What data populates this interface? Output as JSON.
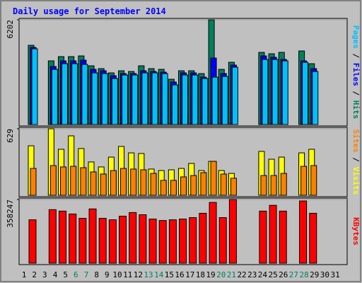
{
  "chart_data": [
    {
      "type": "bar",
      "title": "Daily usage for September 2014",
      "categories": [
        "1",
        "2",
        "3",
        "4",
        "5",
        "6",
        "7",
        "8",
        "9",
        "10",
        "11",
        "12",
        "13",
        "14",
        "15",
        "16",
        "17",
        "18",
        "19",
        "20",
        "21",
        "22",
        "23",
        "24",
        "25",
        "26",
        "27",
        "28",
        "29",
        "30",
        "31"
      ],
      "highlight_categories": [
        "6",
        "7",
        "13",
        "14",
        "20",
        "21",
        "27",
        "28"
      ],
      "highlight_color": "#00805c",
      "legend_separator": " / ",
      "ylim": [
        0,
        6202
      ],
      "yticks": [
        6202
      ],
      "series": [
        {
          "name": "Hits",
          "color": "#00805c",
          "values": [
            4693,
            null,
            3771,
            4022,
            4022,
            4064,
            3478,
            3310,
            3059,
            3184,
            3142,
            3478,
            3310,
            3268,
            2682,
            3184,
            3184,
            3017,
            6202,
            3268,
            3687,
            null,
            null,
            4274,
            4190,
            4274,
            null,
            4358,
            3603,
            null,
            null
          ]
        },
        {
          "name": "Files",
          "color": "#0000ff",
          "values": [
            4567,
            null,
            3436,
            3771,
            3771,
            3813,
            3268,
            3184,
            2891,
            3017,
            3017,
            3184,
            3142,
            3101,
            2514,
            3059,
            3059,
            2807,
            3938,
            3017,
            3519,
            null,
            null,
            4064,
            3980,
            3855,
            null,
            3771,
            3310,
            null,
            null
          ]
        },
        {
          "name": "Pages",
          "color": "#00c0ff",
          "values": [
            4483,
            null,
            3268,
            3603,
            3603,
            3561,
            3059,
            3017,
            2724,
            2933,
            2933,
            3059,
            3059,
            3017,
            2346,
            2933,
            2933,
            2724,
            2807,
            2849,
            3394,
            null,
            null,
            3855,
            3855,
            3771,
            null,
            3687,
            3142,
            null,
            null
          ]
        }
      ]
    },
    {
      "type": "bar",
      "legend_separator": " / ",
      "ylim": [
        0,
        629
      ],
      "yticks": [
        629
      ],
      "series": [
        {
          "name": "Visits",
          "color": "#ffff00",
          "values": [
            468,
            null,
            629,
            435,
            562,
            442,
            315,
            268,
            361,
            462,
            401,
            395,
            248,
            234,
            241,
            254,
            301,
            234,
            321,
            234,
            207,
            null,
            null,
            415,
            341,
            361,
            null,
            401,
            435,
            null,
            null
          ]
        },
        {
          "name": "Sites",
          "color": "#ff8000",
          "values": [
            254,
            null,
            281,
            268,
            274,
            261,
            221,
            201,
            234,
            254,
            248,
            241,
            207,
            141,
            141,
            174,
            187,
            214,
            321,
            201,
            161,
            null,
            null,
            187,
            187,
            207,
            null,
            274,
            281,
            null,
            null
          ]
        }
      ]
    },
    {
      "type": "bar",
      "ylim": [
        0,
        358247
      ],
      "yticks": [
        358247
      ],
      "series": [
        {
          "name": "KBytes",
          "color": "#ff0000",
          "values": [
            244260,
            null,
            301254,
            293112,
            276828,
            252402,
            305325,
            252402,
            244260,
            264615,
            284970,
            272757,
            248331,
            240189,
            244260,
            248331,
            256473,
            280899,
            341964,
            256473,
            358247,
            null,
            null,
            293112,
            325680,
            293112,
            null,
            350105,
            280899,
            null,
            null
          ]
        }
      ]
    }
  ]
}
